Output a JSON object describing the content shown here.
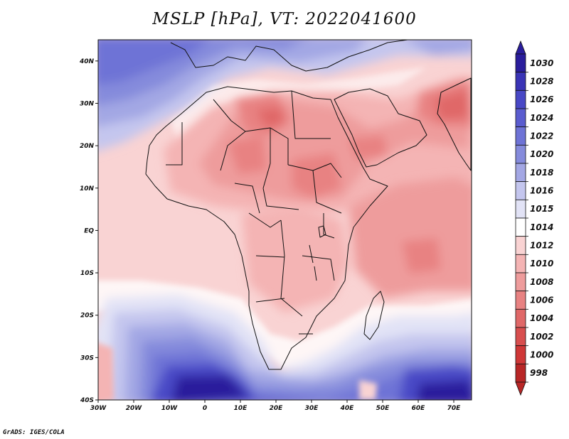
{
  "title": "MSLP [hPa], VT: 2022041600",
  "credit": "GrADS: IGES/COLA",
  "map": {
    "lon_range": [
      -30,
      75
    ],
    "lat_range": [
      -40,
      45
    ],
    "lon_ticks": [
      {
        "value": -30,
        "label": "30W"
      },
      {
        "value": -20,
        "label": "20W"
      },
      {
        "value": -10,
        "label": "10W"
      },
      {
        "value": 0,
        "label": "0"
      },
      {
        "value": 10,
        "label": "10E"
      },
      {
        "value": 20,
        "label": "20E"
      },
      {
        "value": 30,
        "label": "30E"
      },
      {
        "value": 40,
        "label": "40E"
      },
      {
        "value": 50,
        "label": "50E"
      },
      {
        "value": 60,
        "label": "60E"
      },
      {
        "value": 70,
        "label": "70E"
      }
    ],
    "lat_ticks": [
      {
        "value": 40,
        "label": "40N"
      },
      {
        "value": 30,
        "label": "30N"
      },
      {
        "value": 20,
        "label": "20N"
      },
      {
        "value": 10,
        "label": "10N"
      },
      {
        "value": 0,
        "label": "EQ"
      },
      {
        "value": -10,
        "label": "10S"
      },
      {
        "value": -20,
        "label": "20S"
      },
      {
        "value": -30,
        "label": "30S"
      },
      {
        "value": -40,
        "label": "40S"
      }
    ]
  },
  "colorbar": {
    "levels": [
      "1030",
      "1028",
      "1026",
      "1024",
      "1022",
      "1020",
      "1018",
      "1016",
      "1015",
      "1014",
      "1012",
      "1010",
      "1008",
      "1006",
      "1004",
      "1002",
      "1000",
      "998"
    ],
    "colors": [
      "#2a1d9c",
      "#3a34b6",
      "#4848c6",
      "#5a5ccf",
      "#6e73d6",
      "#858bdc",
      "#a3a7e4",
      "#c4c6ee",
      "#e2e3f6",
      "#ffffff",
      "#f9d3d3",
      "#f4b4b4",
      "#ee9c9c",
      "#e88282",
      "#e06868",
      "#d84e4e",
      "#cf3737",
      "#b82626"
    ],
    "low_extend_color": "#b82626",
    "high_extend_color": "#2a1d9c"
  }
}
